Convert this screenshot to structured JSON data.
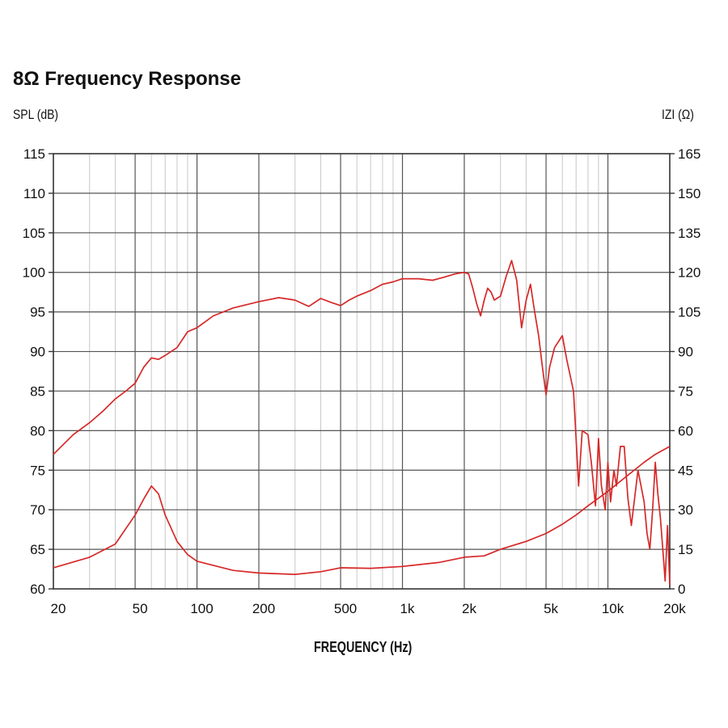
{
  "title": "8Ω Frequency Response",
  "chart_data": {
    "type": "line",
    "title": "8Ω Frequency Response",
    "xlabel": "FREQUENCY (Hz)",
    "ylabel": "SPL (dB)",
    "y2label": "IZI (Ω)",
    "xscale": "log",
    "xlim": [
      20,
      20000
    ],
    "ylim": [
      60,
      115
    ],
    "y2lim": [
      0,
      165
    ],
    "grid": true,
    "x_ticks": [
      20,
      50,
      100,
      200,
      500,
      1000,
      2000,
      5000,
      10000,
      20000
    ],
    "x_tick_labels": [
      "20",
      "50",
      "100",
      "200",
      "500",
      "1k",
      "2k",
      "5k",
      "10k",
      "20k"
    ],
    "y_ticks": [
      60,
      65,
      70,
      75,
      80,
      85,
      90,
      95,
      100,
      105,
      110,
      115
    ],
    "y_tick_labels": [
      "60",
      "65",
      "70",
      "75",
      "80",
      "85",
      "90",
      "95",
      "100",
      "105",
      "110",
      "115"
    ],
    "y2_ticks": [
      0,
      15,
      30,
      45,
      60,
      75,
      90,
      105,
      120,
      135,
      150,
      165
    ],
    "y2_tick_labels": [
      "0",
      "15",
      "30",
      "45",
      "60",
      "75",
      "90",
      "105",
      "120",
      "135",
      "150",
      "165"
    ],
    "line_color": "#d62828",
    "series": [
      {
        "axis": "left",
        "x": [
          20,
          25,
          30,
          35,
          40,
          45,
          50,
          55,
          60,
          65,
          70,
          80,
          90,
          100,
          120,
          150,
          200,
          250,
          300,
          350,
          400,
          450,
          500,
          550,
          600,
          700,
          800,
          900,
          1000,
          1200,
          1400,
          1600,
          1800,
          2000,
          2100,
          2200,
          2300,
          2400,
          2500,
          2600,
          2700,
          2800,
          3000,
          3200,
          3400,
          3600,
          3800,
          4000,
          4200,
          4400,
          4600,
          4800,
          5000,
          5200,
          5500,
          6000,
          6300,
          6800,
          7000,
          7200,
          7500,
          8000,
          8300,
          8700,
          9000,
          9300,
          9700,
          10000,
          10300,
          10700,
          11000,
          11500,
          12000,
          12500,
          13000,
          14000,
          15000,
          15500,
          16000,
          16500,
          17000,
          17500,
          18000,
          18500,
          19000,
          19500,
          20000
        ],
        "y": [
          77,
          79.5,
          81,
          82.5,
          84,
          85,
          86,
          88,
          89.2,
          89,
          89.5,
          90.5,
          92.5,
          93,
          94.5,
          95.5,
          96.3,
          96.8,
          96.5,
          95.7,
          96.7,
          96.2,
          95.8,
          96.5,
          97,
          97.7,
          98.5,
          98.8,
          99.2,
          99.2,
          99,
          99.4,
          99.8,
          100,
          99.8,
          98,
          96,
          94.5,
          96.5,
          98,
          97.5,
          96.5,
          97,
          99.5,
          101.5,
          99,
          93,
          96.5,
          98.5,
          95,
          92,
          88,
          84.5,
          88,
          90.5,
          92,
          89,
          85,
          79,
          73,
          80,
          79.5,
          76,
          70.5,
          79,
          73,
          70,
          76,
          71,
          75,
          73,
          78,
          78,
          71.5,
          68,
          75,
          71,
          67,
          65,
          70,
          76,
          72,
          69,
          65,
          61,
          68,
          60.5
        ]
      },
      {
        "axis": "right",
        "x": [
          20,
          30,
          40,
          50,
          55,
          60,
          65,
          70,
          80,
          90,
          100,
          150,
          200,
          300,
          400,
          500,
          700,
          1000,
          1500,
          2000,
          2500,
          3000,
          4000,
          5000,
          6000,
          7000,
          8000,
          10000,
          12000,
          15000,
          17000,
          20000
        ],
        "y": [
          8,
          12,
          17,
          28,
          34,
          39,
          36,
          28,
          18,
          13,
          10.5,
          7,
          6,
          5.5,
          6.5,
          8,
          7.8,
          8.5,
          10,
          12,
          12.5,
          15,
          18,
          21,
          24.5,
          28,
          31.5,
          37,
          42,
          48,
          51,
          54
        ]
      }
    ]
  }
}
